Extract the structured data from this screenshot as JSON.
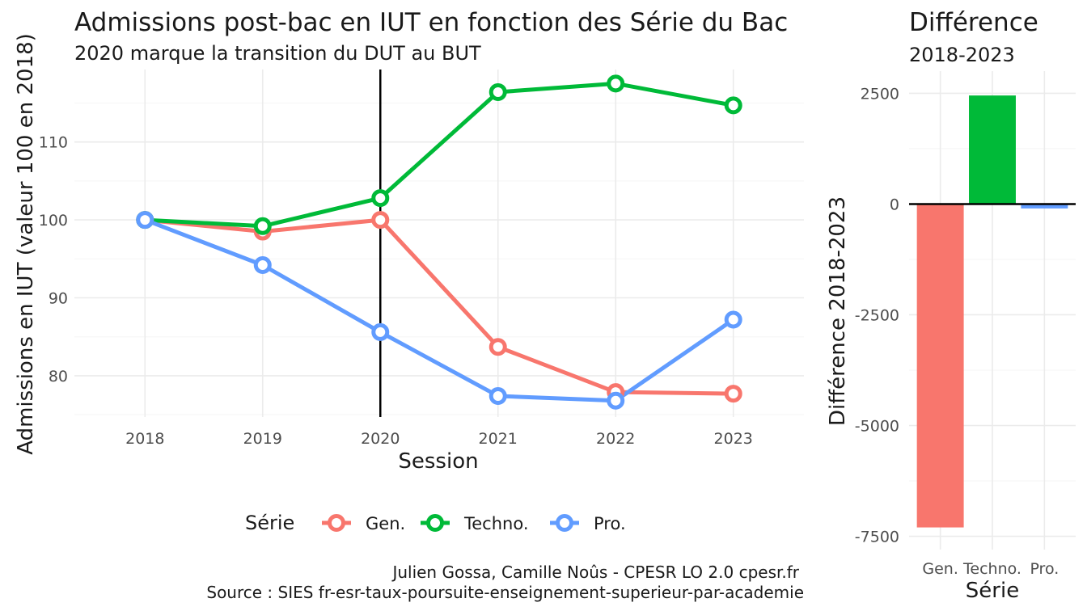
{
  "chart_data": [
    {
      "type": "line",
      "title": "Admissions post-bac en IUT en fonction des Série du Bac",
      "subtitle": "2020 marque la transition du DUT au BUT",
      "xlabel": "Session",
      "ylabel": "Admissions en IUT (valeur 100 en 2018)",
      "x": [
        2018,
        2019,
        2020,
        2021,
        2022,
        2023
      ],
      "x_ticks": [
        "2018",
        "2019",
        "2020",
        "2021",
        "2022",
        "2023"
      ],
      "y_ticks": [
        "80",
        "90",
        "100",
        "110"
      ],
      "ylim": [
        74.7,
        119.3
      ],
      "vline": 2020,
      "legend": {
        "title": "Série",
        "position": "bottom"
      },
      "series": [
        {
          "name": "Gen.",
          "color": "#F8766D",
          "values": [
            100,
            98.5,
            100,
            83.7,
            77.9,
            77.7
          ]
        },
        {
          "name": "Techno.",
          "color": "#00BA38",
          "values": [
            100,
            99.2,
            102.8,
            116.4,
            117.5,
            114.7
          ]
        },
        {
          "name": "Pro.",
          "color": "#619CFF",
          "values": [
            100,
            94.2,
            85.6,
            77.4,
            76.8,
            87.2
          ]
        }
      ],
      "grid": true
    },
    {
      "type": "bar",
      "title": "Différence",
      "subtitle": "2018-2023",
      "xlabel": "Série",
      "ylabel": "Différence 2018-2023",
      "categories": [
        "Gen.",
        "Techno.",
        "Pro."
      ],
      "values": [
        -7300,
        2450,
        -100
      ],
      "colors": [
        "#F8766D",
        "#00BA38",
        "#619CFF"
      ],
      "y_ticks": [
        "2500",
        "0",
        "-2500",
        "-5000",
        "-7500"
      ],
      "ylim": [
        -7800,
        3000
      ],
      "grid": true
    }
  ],
  "caption": {
    "line1": "Julien Gossa, Camille Noûs - CPESR LO 2.0 cpesr.fr",
    "line2": "Source : SIES fr-esr-taux-poursuite-enseignement-superieur-par-academie"
  }
}
